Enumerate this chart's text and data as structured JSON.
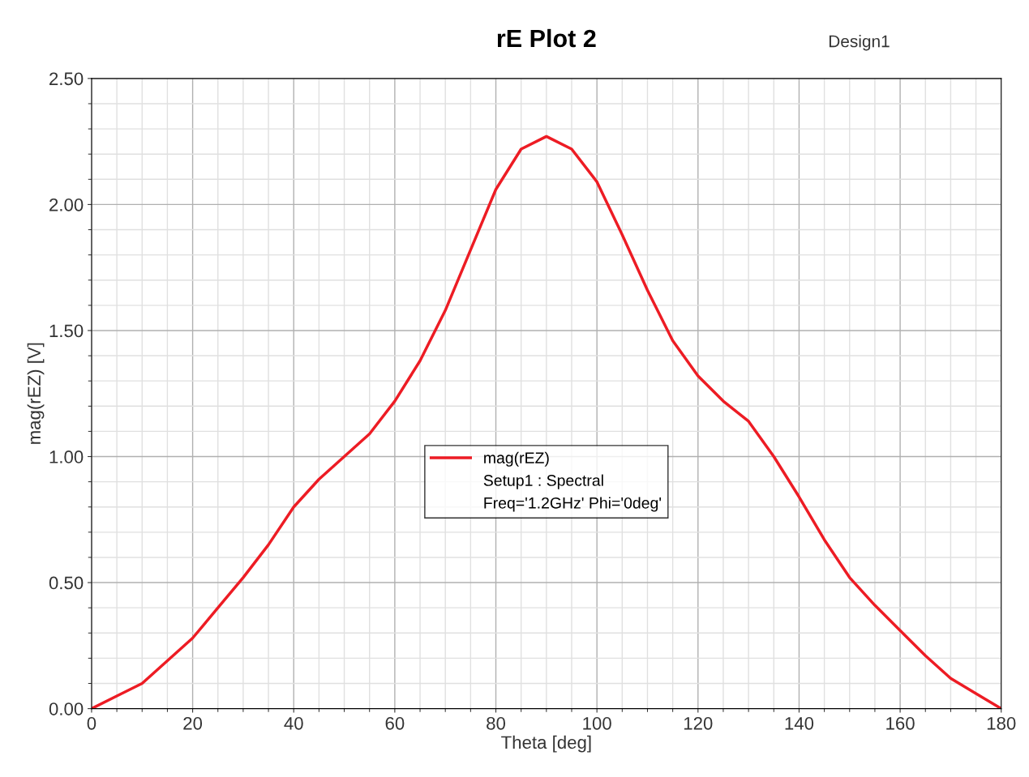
{
  "chart_data": {
    "type": "line",
    "title": "rE Plot 2",
    "xlabel": "Theta [deg]",
    "ylabel": "mag(rEZ) [V]",
    "x": [
      0,
      5,
      10,
      15,
      20,
      25,
      30,
      35,
      40,
      45,
      50,
      55,
      60,
      65,
      70,
      75,
      80,
      85,
      90,
      95,
      100,
      105,
      110,
      115,
      120,
      125,
      130,
      135,
      140,
      145,
      150,
      155,
      160,
      165,
      170,
      175,
      180
    ],
    "series": [
      {
        "name": "mag(rEZ)",
        "color": "#ed1c24",
        "values": [
          0,
          0.05,
          0.1,
          0.19,
          0.28,
          0.4,
          0.52,
          0.65,
          0.8,
          0.91,
          1.0,
          1.09,
          1.22,
          1.38,
          1.58,
          1.82,
          2.06,
          2.22,
          2.27,
          2.22,
          2.09,
          1.88,
          1.66,
          1.46,
          1.32,
          1.22,
          1.14,
          1.0,
          0.84,
          0.67,
          0.52,
          0.41,
          0.31,
          0.21,
          0.12,
          0.06,
          0
        ]
      }
    ],
    "annotations": [
      "Setup1 : Spectral",
      "Freq='1.2GHz' Phi='0deg'",
      "Design1"
    ],
    "xlim": [
      0,
      180
    ],
    "xticks": [
      0,
      20,
      40,
      60,
      80,
      100,
      120,
      140,
      160,
      180
    ],
    "ylim": [
      0,
      2.5
    ],
    "yticks": [
      {
        "value": 0,
        "label": "0.00"
      },
      {
        "value": 0.5,
        "label": "0.50"
      },
      {
        "value": 1.0,
        "label": "1.00"
      },
      {
        "value": 1.5,
        "label": "1.50"
      },
      {
        "value": 2.0,
        "label": "2.00"
      },
      {
        "value": 2.5,
        "label": "2.50"
      }
    ],
    "grid": true,
    "legend": "center",
    "marker": "none",
    "line_style": "solid"
  }
}
